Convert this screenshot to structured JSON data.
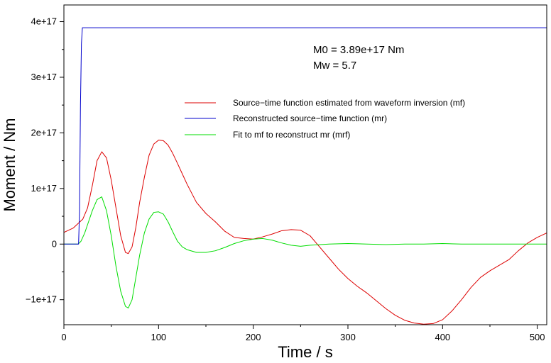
{
  "chart_data": {
    "type": "line",
    "xlabel": "Time / s",
    "ylabel": "Moment / Nm",
    "xlim": [
      0,
      510
    ],
    "ylim": [
      -1.45e+17,
      4.3e+17
    ],
    "x_ticks": [
      0,
      100,
      200,
      300,
      400,
      500
    ],
    "x_tick_labels": [
      "0",
      "100",
      "200",
      "300",
      "400",
      "500"
    ],
    "y_ticks": [
      -1e+17,
      0,
      1e+17,
      2e+17,
      3e+17,
      4e+17
    ],
    "y_tick_labels": [
      "−1e+17",
      "0",
      "1e+17",
      "2e+17",
      "3e+17",
      "4e+17"
    ],
    "grid": false,
    "legend_position": "center-right",
    "annotations": [
      "M0 = 3.89e+17 Nm",
      "Mw = 5.7"
    ],
    "series": [
      {
        "name": "Source−time function estimated from waveform inversion (mf)",
        "color": "#dd0000",
        "x": [
          0,
          10,
          20,
          25,
          30,
          35,
          40,
          45,
          50,
          55,
          60,
          65,
          68,
          72,
          76,
          80,
          85,
          90,
          95,
          100,
          105,
          110,
          115,
          120,
          130,
          140,
          150,
          160,
          170,
          180,
          190,
          200,
          210,
          220,
          230,
          240,
          250,
          260,
          270,
          280,
          290,
          300,
          310,
          320,
          330,
          340,
          350,
          360,
          370,
          380,
          390,
          400,
          410,
          420,
          430,
          440,
          450,
          460,
          470,
          480,
          490,
          500,
          510
        ],
        "y": [
          2.1e+16,
          2.9e+16,
          4.5e+16,
          6.5e+16,
          1.05e+17,
          1.5e+17,
          1.66e+17,
          1.55e+17,
          1.15e+17,
          6.5e+16,
          1.5e+16,
          -1.5e+16,
          -1.7e+16,
          -5000000000000000.0,
          3e+16,
          7.5e+16,
          1.2e+17,
          1.6e+17,
          1.8e+17,
          1.87e+17,
          1.86e+17,
          1.78e+17,
          1.63e+17,
          1.45e+17,
          1.08e+17,
          7.5e+16,
          5.5e+16,
          4e+16,
          2.3e+16,
          1.2e+16,
          1e+16,
          9000000000000000.0,
          1.3e+16,
          1.8e+16,
          2.4e+16,
          2.6e+16,
          2.5e+16,
          1.5e+16,
          -5000000000000000.0,
          -2.5e+16,
          -4.5e+16,
          -6.2e+16,
          -7.6e+16,
          -8.8e+16,
          -1.02e+17,
          -1.16e+17,
          -1.28e+17,
          -1.37e+17,
          -1.42e+17,
          -1.44e+17,
          -1.43e+17,
          -1.36e+17,
          -1.2e+17,
          -1e+17,
          -7.8e+16,
          -6e+16,
          -4.8e+16,
          -3.8e+16,
          -2.8e+16,
          -1.2e+16,
          2000000000000000.0,
          1.2e+16,
          2e+16
        ]
      },
      {
        "name": "Reconstructed source−time function (mr)",
        "color": "#0000cc",
        "x": [
          0,
          15.5,
          16.5,
          17.5,
          18.5,
          19.5,
          510
        ],
        "y": [
          0,
          0,
          6e+16,
          2.5e+17,
          3.6e+17,
          3.89e+17,
          3.89e+17
        ]
      },
      {
        "name": "Fit to mf to reconstruct mr (mrf)",
        "color": "#00dd00",
        "x": [
          0,
          15,
          18,
          22,
          26,
          30,
          35,
          40,
          45,
          50,
          55,
          60,
          65,
          68,
          72,
          76,
          80,
          85,
          90,
          95,
          100,
          105,
          110,
          115,
          120,
          125,
          130,
          140,
          150,
          160,
          170,
          180,
          190,
          200,
          210,
          220,
          230,
          240,
          250,
          260,
          280,
          300,
          320,
          340,
          360,
          380,
          400,
          420,
          440,
          460,
          480,
          500,
          510
        ],
        "y": [
          0,
          0,
          5000000000000000.0,
          2e+16,
          4e+16,
          6e+16,
          8e+16,
          8.5e+16,
          6e+16,
          1.5e+16,
          -4e+16,
          -8.5e+16,
          -1.12e+17,
          -1.15e+17,
          -1e+17,
          -6e+16,
          -2e+16,
          2e+16,
          4.5e+16,
          5.7e+16,
          5.8e+16,
          5.4e+16,
          4e+16,
          2.2e+16,
          5000000000000000.0,
          -5000000000000000.0,
          -1e+16,
          -1.5e+16,
          -1.5e+16,
          -1.2e+16,
          -6000000000000000.0,
          1000000000000000.0,
          6000000000000000.0,
          9000000000000000.0,
          1e+16,
          7000000000000000.0,
          2000000000000000.0,
          -2000000000000000.0,
          -4000000000000000.0,
          -2000000000000000.0,
          0,
          1000000000000000.0,
          0,
          -1000000000000000.0,
          0,
          0,
          1000000000000000.0,
          0,
          0,
          0,
          0,
          0,
          0
        ]
      }
    ]
  }
}
